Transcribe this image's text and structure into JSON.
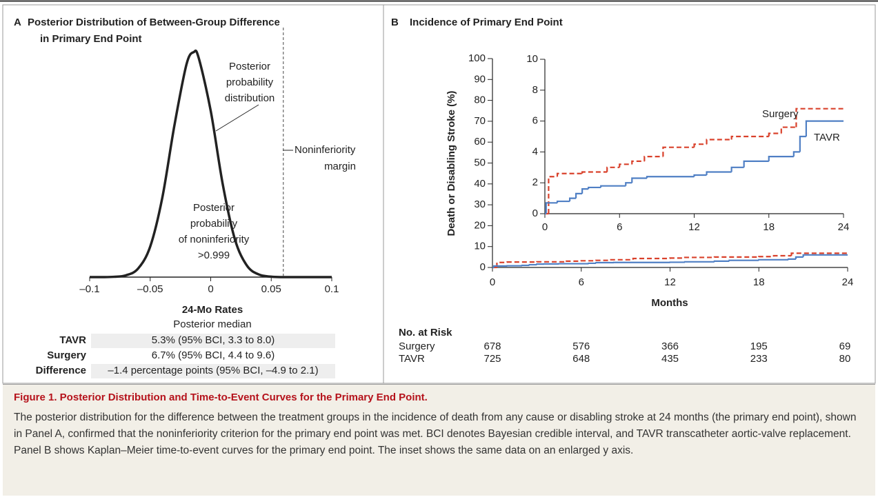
{
  "chart_data": [
    {
      "type": "density",
      "panel": "A",
      "title": [
        "Posterior Distribution of Between-Group Difference",
        "in Primary End Point"
      ],
      "x": [
        -0.1,
        -0.09,
        -0.08,
        -0.07,
        -0.06,
        -0.05,
        -0.04,
        -0.03,
        -0.02,
        -0.014,
        -0.01,
        0,
        0.01,
        0.02,
        0.03,
        0.04,
        0.05,
        0.06,
        0.07,
        0.08,
        0.09,
        0.1
      ],
      "values": [
        0,
        0,
        0.03,
        0.18,
        0.84,
        3.0,
        7.81,
        14.93,
        20.96,
        22.16,
        21.62,
        16.38,
        9.11,
        3.72,
        1.12,
        0.25,
        0.04,
        0,
        0,
        0,
        0,
        0
      ],
      "color": "#222",
      "xlim": [
        -0.1,
        0.1
      ],
      "ylim": [
        0,
        22.2
      ],
      "xticks": [
        {
          "value": -0.1,
          "label": "–0.1"
        },
        {
          "value": -0.05,
          "label": "–0.05"
        },
        0,
        0.05,
        0.1
      ],
      "margin": {
        "value": 0.06,
        "label": [
          "Noninferiority",
          "margin"
        ]
      },
      "annotations": [
        [
          "Posterior",
          "probability",
          "distribution"
        ],
        [
          "Posterior",
          "probability",
          "of noninferiority",
          ">0.999"
        ]
      ],
      "rates_table": {
        "title": "24-Mo Rates",
        "subtitle": "Posterior median",
        "rows": [
          [
            "TAVR",
            "5.3% (95% BCI, 3.3 to 8.0)"
          ],
          [
            "Surgery",
            "6.7% (95% BCI, 4.4 to 9.6)"
          ],
          [
            "Difference",
            "–1.4 percentage points (95% BCI, –4.9 to 2.1)"
          ]
        ]
      }
    },
    {
      "type": "step",
      "panel": "B",
      "title": "Incidence of Primary End Point",
      "x_label": "Months",
      "y_label": "Death or Disabling Stroke (%)",
      "xlim": [
        0,
        24
      ],
      "xticks": [
        0,
        6,
        12,
        18,
        24
      ],
      "ylim": [
        0,
        100
      ],
      "yticks": [
        0,
        10,
        20,
        30,
        40,
        50,
        60,
        70,
        80,
        90,
        100
      ],
      "inset": {
        "ylim": [
          0,
          10
        ],
        "yticks": [
          0,
          2,
          4,
          6,
          8,
          10
        ]
      },
      "series": [
        {
          "name": "Surgery",
          "color": "#d9412b",
          "style": "dashed",
          "x": [
            0,
            0.3,
            1,
            3,
            5,
            6,
            7,
            8,
            9.5,
            12,
            13,
            15,
            18,
            19,
            20.2
          ],
          "values": [
            0,
            2.4,
            2.6,
            2.7,
            3.0,
            3.2,
            3.4,
            3.7,
            4.3,
            4.5,
            4.8,
            5.0,
            5.2,
            5.6,
            6.8
          ]
        },
        {
          "name": "TAVR",
          "color": "#4f7fc4",
          "style": "solid",
          "x": [
            0,
            0.1,
            1,
            2,
            2.5,
            3,
            3.5,
            4.5,
            6.5,
            7,
            8.2,
            12,
            13,
            15,
            16,
            18,
            20,
            20.5,
            21
          ],
          "values": [
            0,
            0.7,
            0.8,
            1.0,
            1.3,
            1.6,
            1.7,
            1.8,
            2.0,
            2.3,
            2.4,
            2.5,
            2.7,
            3.0,
            3.4,
            3.7,
            4.0,
            5.0,
            6.0
          ]
        }
      ],
      "risk_table": {
        "title": "No. at Risk",
        "rows": [
          {
            "label": "Surgery",
            "values": [
              678,
              576,
              366,
              195,
              69
            ]
          },
          {
            "label": "TAVR",
            "values": [
              725,
              648,
              435,
              233,
              80
            ]
          }
        ]
      }
    }
  ],
  "caption": {
    "title": "Figure 1. Posterior Distribution and Time-to-Event Curves for the Primary End Point.",
    "text": "The posterior distribution for the difference between the treatment groups in the incidence of death from any cause or disabling stroke at 24 months (the primary end point), shown in Panel A, confirmed that the noninferiority criterion for the primary end point was met. BCI denotes Bayesian credible interval, and TAVR transcatheter aortic-valve replacement. Panel B shows Kaplan–Meier time-to-event curves for the primary end point. The inset shows the same data on an enlarged y axis."
  }
}
